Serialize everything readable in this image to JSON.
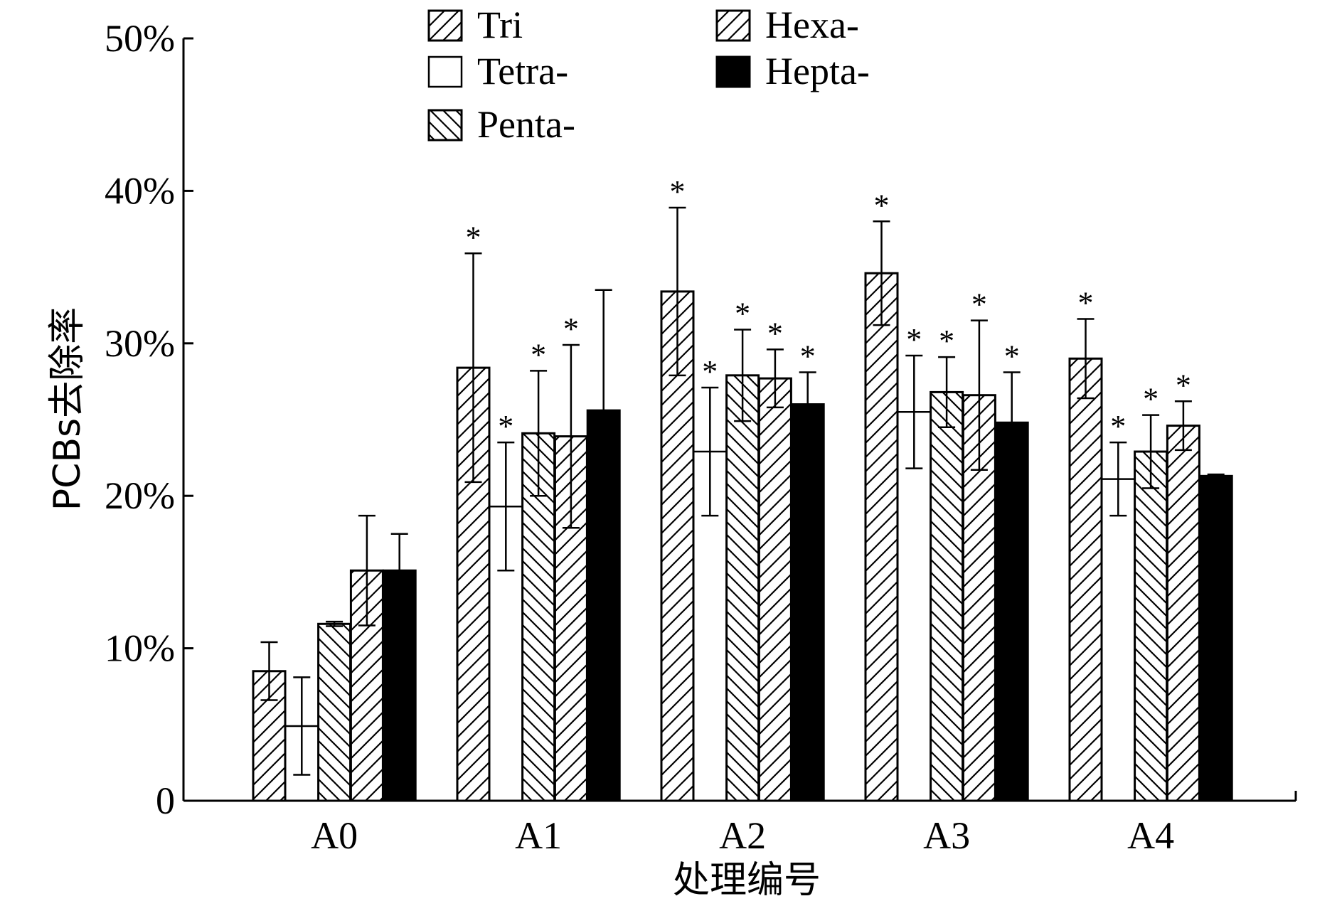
{
  "chart_data": {
    "type": "bar",
    "xlabel": "处理编号",
    "ylabel": "PCBs去除率",
    "ylim": [
      0,
      50
    ],
    "y_ticks": [
      {
        "value": 0,
        "label": "0"
      },
      {
        "value": 10,
        "label": "10%"
      },
      {
        "value": 20,
        "label": "20%"
      },
      {
        "value": 30,
        "label": "30%"
      },
      {
        "value": 40,
        "label": "40%"
      },
      {
        "value": 50,
        "label": "50%"
      }
    ],
    "categories": [
      "A0",
      "A1",
      "A2",
      "A3",
      "A4"
    ],
    "significance_marker": "*",
    "legend_position": "top",
    "grid": false,
    "series": [
      {
        "name": "Tri",
        "pattern": "hatch-up",
        "values": [
          8.5,
          28.4,
          33.4,
          34.6,
          29.0
        ],
        "errors": [
          1.9,
          7.5,
          5.5,
          3.4,
          2.6
        ],
        "significant": [
          false,
          true,
          true,
          true,
          true
        ]
      },
      {
        "name": "Tetra-",
        "pattern": "open",
        "values": [
          4.9,
          19.3,
          22.9,
          25.5,
          21.1
        ],
        "errors": [
          3.2,
          4.2,
          4.2,
          3.7,
          2.4
        ],
        "significant": [
          false,
          true,
          true,
          true,
          true
        ]
      },
      {
        "name": "Penta-",
        "pattern": "hatch-down",
        "values": [
          11.6,
          24.1,
          27.9,
          26.8,
          22.9
        ],
        "errors": [
          0.15,
          4.1,
          3.0,
          2.3,
          2.4
        ],
        "significant": [
          false,
          true,
          true,
          true,
          true
        ]
      },
      {
        "name": "Hexa-",
        "pattern": "hatch-up",
        "values": [
          15.1,
          23.9,
          27.7,
          26.6,
          24.6
        ],
        "errors": [
          3.6,
          6.0,
          1.9,
          4.9,
          1.6
        ],
        "significant": [
          false,
          true,
          true,
          true,
          true
        ]
      },
      {
        "name": "Hepta-",
        "pattern": "solid",
        "values": [
          15.1,
          25.6,
          26.0,
          24.8,
          21.3
        ],
        "errors": [
          2.4,
          7.9,
          2.1,
          3.3,
          0.1
        ],
        "significant": [
          false,
          false,
          true,
          true,
          false
        ]
      }
    ]
  }
}
